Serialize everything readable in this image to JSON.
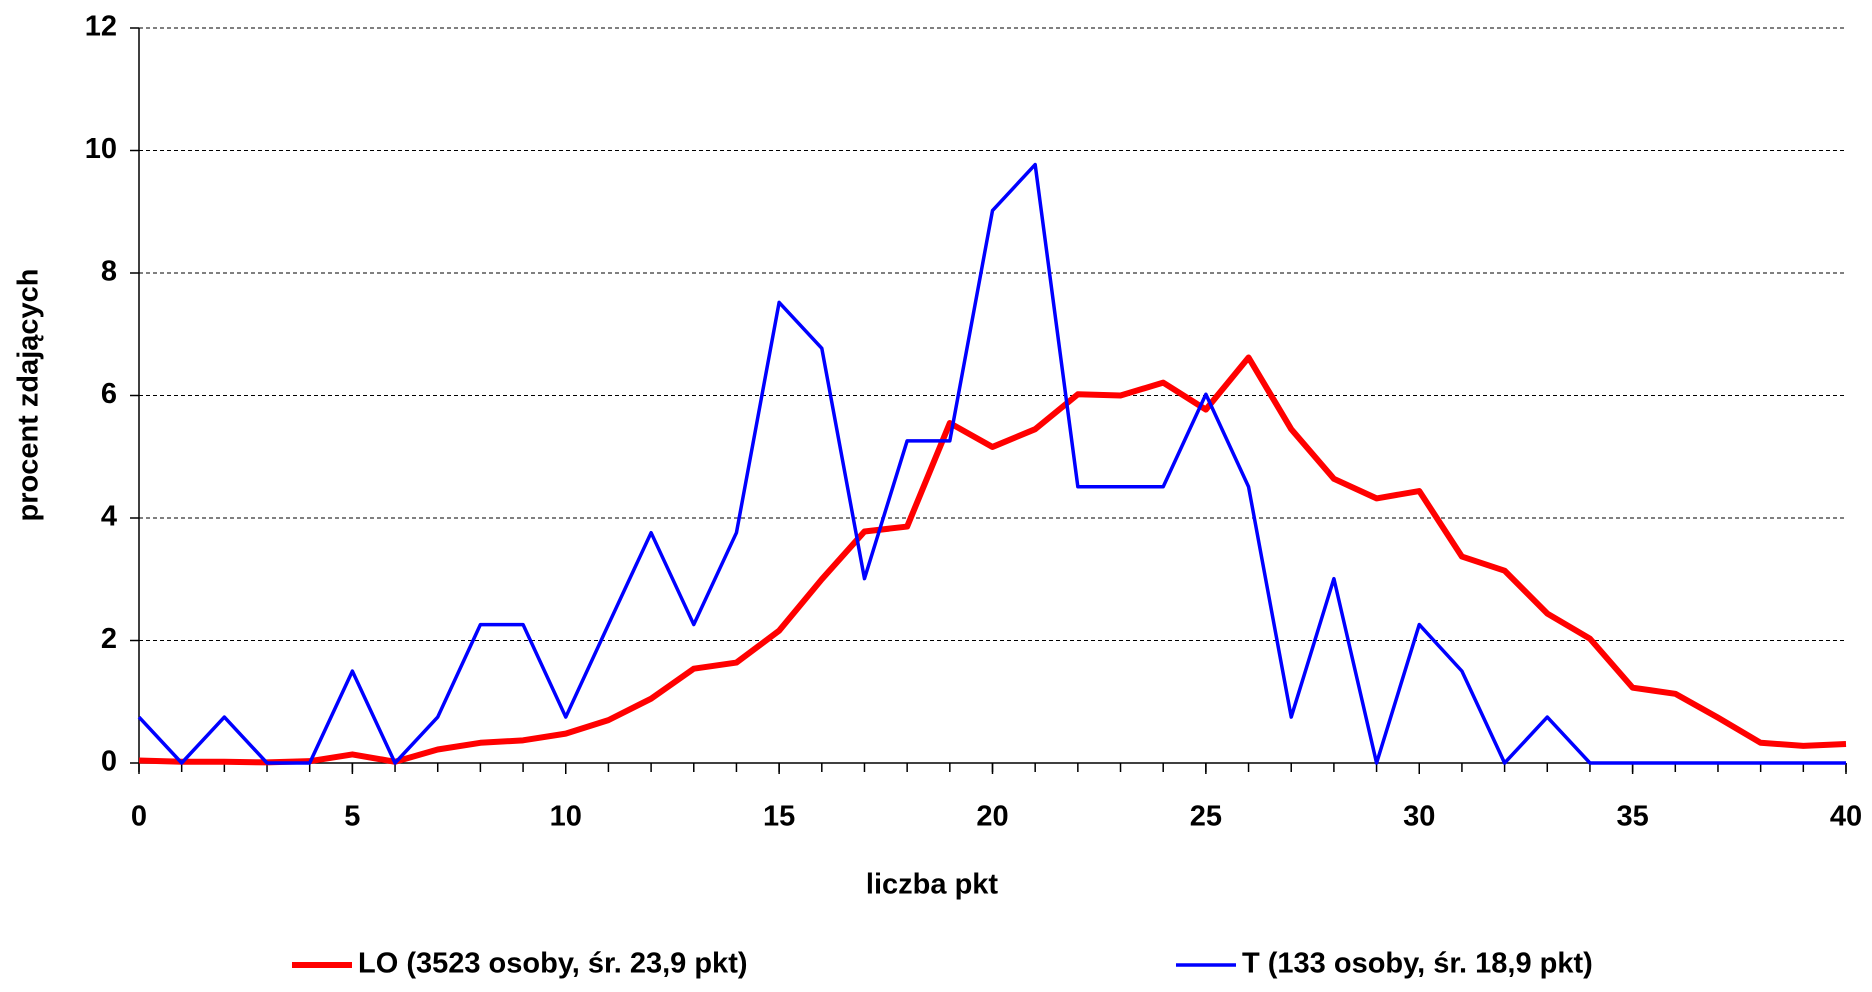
{
  "chart_data": {
    "type": "line",
    "x_label": "liczba pkt",
    "y_label": "procent zdających",
    "x": [
      0,
      1,
      2,
      3,
      4,
      5,
      6,
      7,
      8,
      9,
      10,
      11,
      12,
      13,
      14,
      15,
      16,
      17,
      18,
      19,
      20,
      21,
      22,
      23,
      24,
      25,
      26,
      27,
      28,
      29,
      30,
      31,
      32,
      33,
      34,
      35,
      36,
      37,
      38,
      39,
      40
    ],
    "series": [
      {
        "name": "LO (3523 osoby, śr. 23,9 pkt)",
        "color": "#ff0000",
        "width": 6,
        "values": [
          0.04,
          0.02,
          0.02,
          0.01,
          0.03,
          0.14,
          0.02,
          0.22,
          0.33,
          0.37,
          0.48,
          0.7,
          1.05,
          1.54,
          1.64,
          2.16,
          3.0,
          3.78,
          3.86,
          5.55,
          5.16,
          5.45,
          6.02,
          6.0,
          6.21,
          5.77,
          6.62,
          5.45,
          4.64,
          4.32,
          4.44,
          3.37,
          3.14,
          2.44,
          2.03,
          1.23,
          1.13,
          0.74,
          0.33,
          0.28,
          0.31
        ]
      },
      {
        "name": "T (133 osoby, śr. 18,9 pkt)",
        "color": "#0000ff",
        "width": 3.5,
        "values": [
          0.75,
          0,
          0.75,
          0,
          0,
          1.5,
          0,
          0.75,
          2.26,
          2.26,
          0.75,
          2.26,
          3.76,
          2.26,
          3.76,
          7.52,
          6.77,
          3.01,
          5.26,
          5.26,
          9.02,
          9.77,
          4.51,
          4.51,
          4.51,
          6.02,
          4.51,
          0.75,
          3.01,
          0,
          2.26,
          1.5,
          0,
          0.75,
          0,
          0,
          0,
          0,
          0,
          0,
          0
        ]
      }
    ],
    "xlim": [
      0,
      40
    ],
    "xticks": [
      0,
      5,
      10,
      15,
      20,
      25,
      30,
      35,
      40
    ],
    "ylim": [
      0,
      12
    ],
    "yticks": [
      0,
      2,
      4,
      6,
      8,
      10,
      12
    ],
    "grid": true,
    "legend_position": "bottom"
  }
}
